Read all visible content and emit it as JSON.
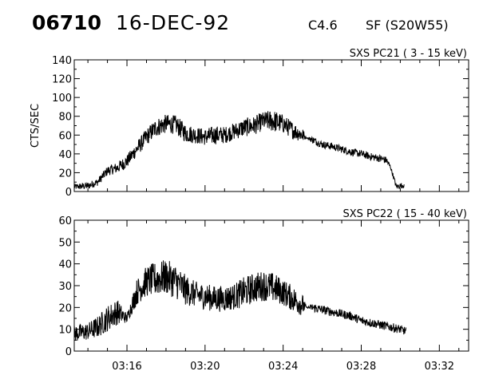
{
  "header": {
    "event_id": "06710",
    "date": "16-DEC-92",
    "goes_class": "C4.6",
    "flare_location": "SF (S20W55)"
  },
  "chart_data": [
    {
      "type": "line",
      "title": "SXS PC21  (  3 - 15 keV)",
      "xlabel": "",
      "ylabel": "CTS/SEC",
      "x_unit": "UT (minutes after 03:00)",
      "xlim": [
        13.3,
        33.5
      ],
      "ylim": [
        0,
        140
      ],
      "yticks": [
        0,
        20,
        40,
        60,
        80,
        100,
        120,
        140
      ],
      "xticks": [
        16,
        20,
        24,
        28,
        32
      ],
      "xtick_labels": [
        "03:16",
        "03:20",
        "03:24",
        "03:28",
        "03:32"
      ],
      "show_xtick_labels": false,
      "grid": false,
      "series": [
        {
          "x": [
            13.3,
            14.0,
            14.5,
            15.0,
            15.5,
            16.0,
            16.5,
            17.0,
            17.5,
            18.0,
            18.5,
            19.0,
            19.5,
            20.0,
            20.5,
            21.0,
            21.5,
            22.0,
            22.5,
            23.0,
            23.5,
            24.0,
            24.5,
            25.0,
            25.2,
            25.5,
            26.0,
            26.5,
            27.0,
            27.5,
            28.0,
            28.5,
            29.0,
            29.3,
            29.5,
            29.8,
            30.2
          ],
          "y": [
            5,
            6,
            10,
            22,
            25,
            32,
            45,
            58,
            68,
            72,
            71,
            62,
            60,
            58,
            60,
            60,
            64,
            68,
            70,
            75,
            75,
            72,
            65,
            60,
            57,
            55,
            50,
            48,
            45,
            42,
            40,
            37,
            35,
            33,
            26,
            5,
            7
          ],
          "amplitude": [
            3,
            4,
            4,
            5,
            6,
            7,
            8,
            9,
            10,
            10,
            10,
            10,
            9,
            9,
            10,
            9,
            9,
            10,
            10,
            10,
            12,
            10,
            9,
            8,
            0,
            4,
            4,
            4,
            4,
            4,
            4,
            4,
            4,
            4,
            2,
            3,
            3
          ]
        }
      ]
    },
    {
      "type": "line",
      "title": "SXS PC22  ( 15 - 40 keV)",
      "xlabel": "",
      "ylabel": "",
      "x_unit": "UT (minutes after 03:00)",
      "xlim": [
        13.3,
        33.5
      ],
      "ylim": [
        0,
        60
      ],
      "yticks": [
        0,
        10,
        20,
        30,
        40,
        50,
        60
      ],
      "xticks": [
        16,
        20,
        24,
        28,
        32
      ],
      "xtick_labels": [
        "03:16",
        "03:20",
        "03:24",
        "03:28",
        "03:32"
      ],
      "show_xtick_labels": true,
      "grid": false,
      "series": [
        {
          "x": [
            13.3,
            14.0,
            14.5,
            15.0,
            15.5,
            16.0,
            16.5,
            17.0,
            17.5,
            18.0,
            18.5,
            19.0,
            19.5,
            20.0,
            20.5,
            21.0,
            21.5,
            22.0,
            22.5,
            23.0,
            23.5,
            24.0,
            24.5,
            25.0,
            25.2,
            25.5,
            26.0,
            26.5,
            27.0,
            27.5,
            28.0,
            28.5,
            29.0,
            29.5,
            30.0,
            30.3
          ],
          "y": [
            8,
            9,
            11,
            15,
            18,
            15,
            27,
            32,
            33,
            34,
            32,
            28,
            26,
            25,
            24,
            24,
            25,
            27,
            29,
            30,
            29,
            27,
            24,
            21,
            20,
            20,
            19,
            18,
            17,
            16,
            14,
            13,
            12,
            11,
            10,
            9
          ],
          "amplitude": [
            4,
            4,
            5,
            6,
            6,
            2,
            6,
            7,
            8,
            8,
            8,
            7,
            6,
            6,
            6,
            6,
            6,
            7,
            7,
            7,
            7,
            6,
            6,
            5,
            0,
            2,
            2,
            2,
            2,
            2,
            2,
            2,
            2,
            2,
            2,
            2
          ]
        }
      ]
    }
  ]
}
